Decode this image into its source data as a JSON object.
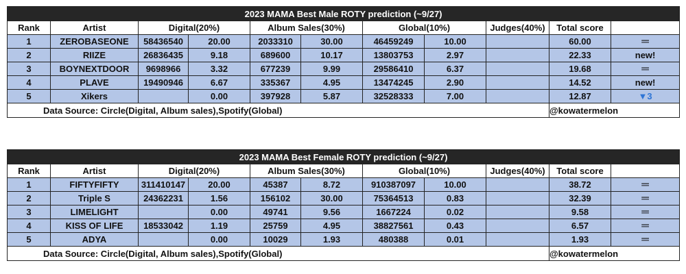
{
  "headers": [
    "Rank",
    "Artist",
    "Digital(20%)",
    "Album Sales(30%)",
    "Global(10%)",
    "Judges(40%)",
    "Total score",
    ""
  ],
  "male": {
    "title": "2023 MAMA Best Male ROTY prediction (~9/27)",
    "rows": [
      [
        "1",
        "ZEROBASEONE",
        "58436540",
        "20.00",
        "2033310",
        "30.00",
        "46459249",
        "10.00",
        "",
        "60.00",
        "═"
      ],
      [
        "2",
        "RIIZE",
        "26836435",
        "9.18",
        "689600",
        "10.17",
        "13803753",
        "2.97",
        "",
        "22.33",
        "new!"
      ],
      [
        "3",
        "BOYNEXTDOOR",
        "9698966",
        "3.32",
        "677239",
        "9.99",
        "29586410",
        "6.37",
        "",
        "19.68",
        "═"
      ],
      [
        "4",
        "PLAVE",
        "19490946",
        "6.67",
        "335367",
        "4.95",
        "13474245",
        "2.90",
        "",
        "14.52",
        "new!"
      ],
      [
        "5",
        "Xikers",
        "",
        "0.00",
        "397928",
        "5.87",
        "32528333",
        "7.00",
        "",
        "12.87",
        "▼3"
      ]
    ],
    "source": "Data Source: Circle(Digital, Album sales),Spotify(Global)",
    "credit": "@kowatermelon"
  },
  "female": {
    "title": "2023 MAMA Best Female ROTY prediction (~9/27)",
    "rows": [
      [
        "1",
        "FIFTYFIFTY",
        "311410147",
        "20.00",
        "45387",
        "8.72",
        "910387097",
        "10.00",
        "",
        "38.72",
        "═"
      ],
      [
        "2",
        "Triple S",
        "24362231",
        "1.56",
        "156102",
        "30.00",
        "75364513",
        "0.83",
        "",
        "32.39",
        "═"
      ],
      [
        "3",
        "LIMELIGHT",
        "",
        "0.00",
        "49741",
        "9.56",
        "1667224",
        "0.02",
        "",
        "9.58",
        "═"
      ],
      [
        "4",
        "KISS OF LIFE",
        "18533042",
        "1.19",
        "25759",
        "4.95",
        "38827561",
        "0.43",
        "",
        "6.57",
        "═"
      ],
      [
        "5",
        "ADYA",
        "",
        "0.00",
        "10029",
        "1.93",
        "480388",
        "0.01",
        "",
        "1.93",
        "═"
      ]
    ],
    "source": "Data Source: Circle(Digital, Album sales),Spotify(Global)",
    "credit": "@kowatermelon"
  },
  "colors": {
    "title_bg": "#262626",
    "row_bg": "#b4c6e7",
    "down_arrow": "#2e75d6"
  }
}
